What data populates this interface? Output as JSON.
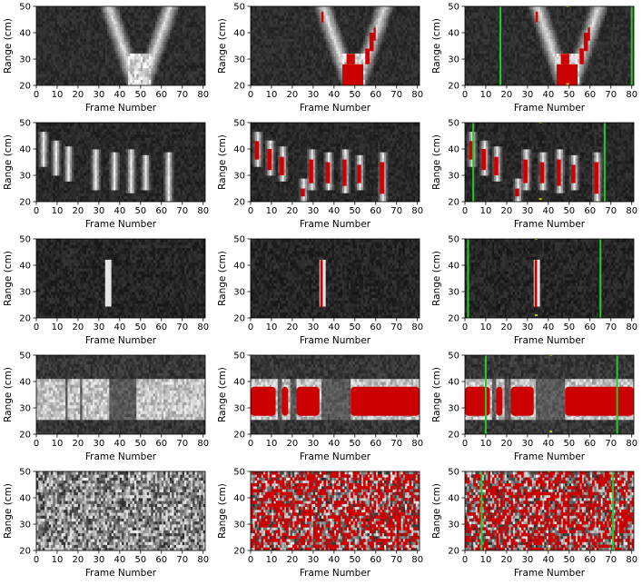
{
  "chart_data": {
    "type": "heatmap",
    "layout": {
      "rows": 5,
      "cols": 3
    },
    "shared_axes": {
      "xlabel": "Frame Number",
      "ylabel": "Range (cm)",
      "xlim": [
        0,
        81
      ],
      "ylim": [
        20,
        50
      ],
      "xticks": [
        0,
        10,
        20,
        30,
        40,
        50,
        60,
        70,
        80
      ],
      "yticks": [
        20,
        30,
        40,
        50
      ]
    },
    "colors": {
      "background": "#0a0a0a",
      "intensity": "#ffffff",
      "detection": "#cc0000",
      "boundary": "#22cc22",
      "marker": "#cccc00"
    },
    "panels": [
      {
        "row": 0,
        "col": 0,
        "kind": "raw",
        "pattern": "v-shape",
        "v_center": 49,
        "v_width": 13,
        "v_min_range": 20
      },
      {
        "row": 0,
        "col": 1,
        "kind": "detection",
        "pattern": "v-shape",
        "v_center": 49,
        "v_width": 13,
        "v_min_range": 20
      },
      {
        "row": 0,
        "col": 2,
        "kind": "detection",
        "pattern": "v-shape",
        "v_center": 49,
        "v_width": 13,
        "v_min_range": 20,
        "boundaries": [
          17,
          80
        ],
        "markers": [
          {
            "x": 49,
            "y": 50
          },
          {
            "x": 49,
            "y": 20.5
          }
        ]
      },
      {
        "row": 1,
        "col": 0,
        "kind": "raw",
        "pattern": "pulses",
        "pulses": [
          [
            3,
            36,
            43
          ],
          [
            9,
            32,
            40
          ],
          [
            15,
            30,
            37
          ],
          [
            28,
            27,
            36
          ],
          [
            37,
            27,
            35
          ],
          [
            45,
            26,
            36
          ],
          [
            52,
            27,
            34
          ],
          [
            63,
            23,
            35
          ]
        ]
      },
      {
        "row": 1,
        "col": 1,
        "kind": "detection",
        "pattern": "pulses",
        "pulses": [
          [
            3,
            36,
            43
          ],
          [
            9,
            32,
            40
          ],
          [
            15,
            30,
            37
          ],
          [
            25,
            22,
            25
          ],
          [
            29,
            27,
            36
          ],
          [
            37,
            27,
            35
          ],
          [
            45,
            26,
            36
          ],
          [
            52,
            27,
            34
          ],
          [
            63,
            23,
            35
          ]
        ]
      },
      {
        "row": 1,
        "col": 2,
        "kind": "detection",
        "pattern": "pulses",
        "pulses": [
          [
            3,
            36,
            43
          ],
          [
            9,
            32,
            40
          ],
          [
            15,
            30,
            37
          ],
          [
            25,
            22,
            25
          ],
          [
            29,
            27,
            36
          ],
          [
            37,
            27,
            35
          ],
          [
            45,
            26,
            36
          ],
          [
            52,
            27,
            34
          ],
          [
            63,
            23,
            35
          ]
        ],
        "boundaries": [
          4,
          67
        ],
        "markers": [
          {
            "x": 36,
            "y": 50
          },
          {
            "x": 36,
            "y": 21
          }
        ]
      },
      {
        "row": 2,
        "col": 0,
        "kind": "raw",
        "pattern": "line",
        "line_x": 34,
        "line_range": [
          24,
          42
        ]
      },
      {
        "row": 2,
        "col": 1,
        "kind": "detection",
        "pattern": "line",
        "line_x": 34,
        "line_range": [
          24,
          42
        ]
      },
      {
        "row": 2,
        "col": 2,
        "kind": "detection",
        "pattern": "line",
        "line_x": 34,
        "line_range": [
          24,
          42
        ],
        "boundaries": [
          1.5,
          65
        ],
        "markers": [
          {
            "x": 34,
            "y": 50
          },
          {
            "x": 34,
            "y": 21
          }
        ]
      },
      {
        "row": 3,
        "col": 0,
        "kind": "raw",
        "pattern": "band",
        "band_range": [
          27,
          38
        ],
        "segments": [
          [
            0,
            13
          ],
          [
            15,
            20
          ],
          [
            22,
            34
          ],
          [
            48,
            81
          ]
        ]
      },
      {
        "row": 3,
        "col": 1,
        "kind": "detection",
        "pattern": "band",
        "band_range": [
          27,
          38
        ],
        "segments": [
          [
            0,
            12
          ],
          [
            15,
            18
          ],
          [
            22,
            33
          ],
          [
            48,
            81
          ]
        ]
      },
      {
        "row": 3,
        "col": 2,
        "kind": "detection",
        "pattern": "band",
        "band_range": [
          27,
          38
        ],
        "segments": [
          [
            0,
            12
          ],
          [
            15,
            18
          ],
          [
            22,
            33
          ],
          [
            48,
            81
          ]
        ],
        "boundaries": [
          10,
          73
        ],
        "markers": [
          {
            "x": 41,
            "y": 50
          },
          {
            "x": 41,
            "y": 21
          }
        ]
      },
      {
        "row": 4,
        "col": 0,
        "kind": "raw",
        "pattern": "noise",
        "density": 0.0
      },
      {
        "row": 4,
        "col": 1,
        "kind": "detection",
        "pattern": "noise",
        "density": 0.42
      },
      {
        "row": 4,
        "col": 2,
        "kind": "detection",
        "pattern": "noise",
        "density": 0.42,
        "boundaries": [
          8,
          71
        ],
        "markers": [
          {
            "x": 40,
            "y": 50
          },
          {
            "x": 40,
            "y": 20.5
          }
        ]
      }
    ]
  }
}
